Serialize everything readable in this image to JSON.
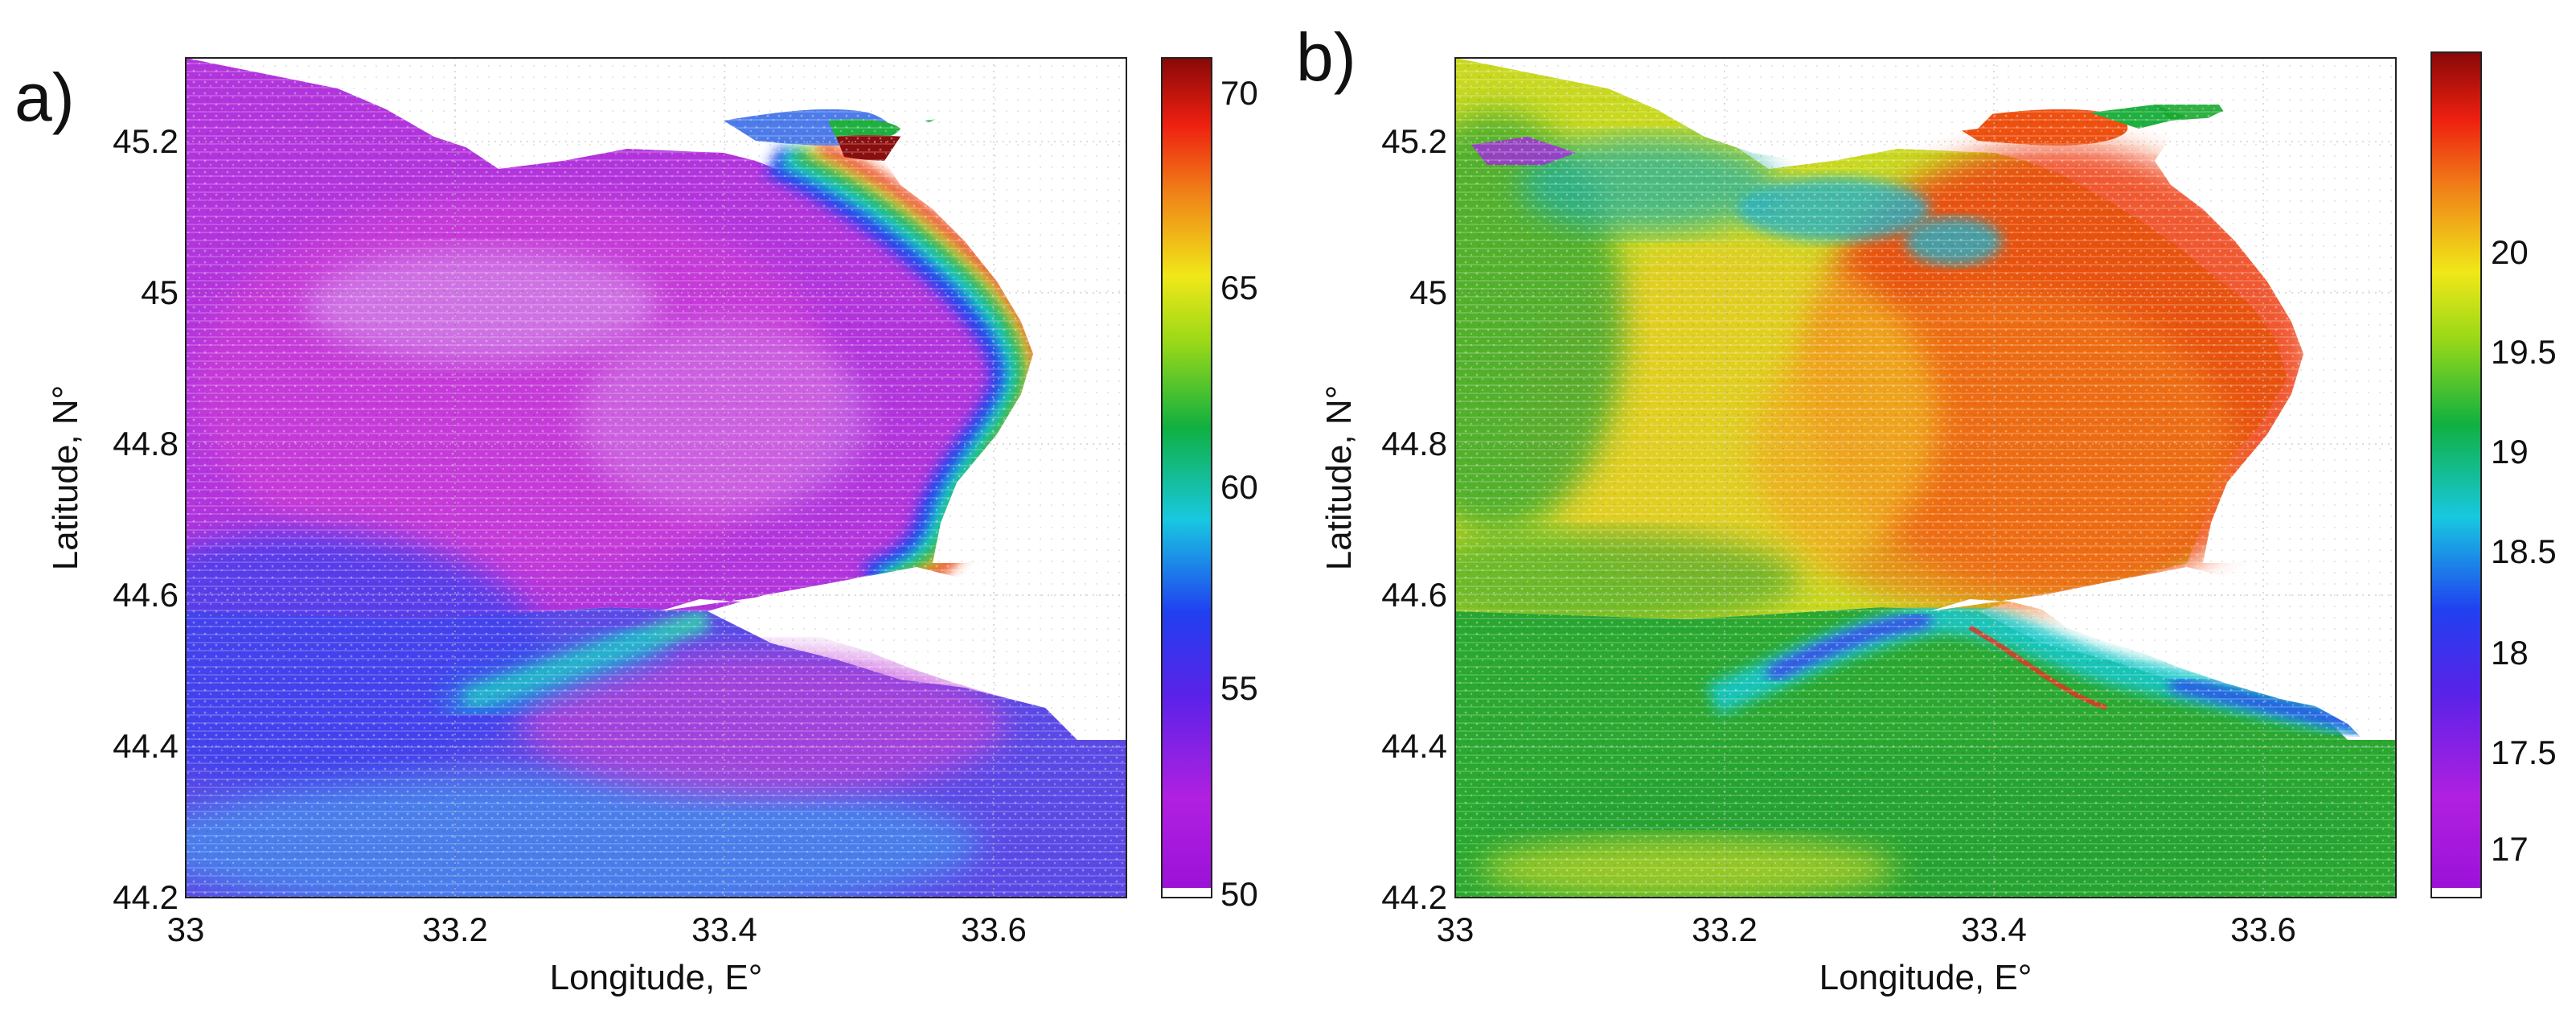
{
  "panels": [
    {
      "label": "a)",
      "xlabel": "Longitude, E°",
      "ylabel": "Latitude, N°",
      "xticks": [
        "33",
        "33.2",
        "33.4",
        "33.6"
      ],
      "yticks": [
        "44.2",
        "44.4",
        "44.6",
        "44.8",
        "45",
        "45.2"
      ],
      "colorbar": {
        "ticks": [
          "50",
          "55",
          "60",
          "65",
          "70"
        ],
        "range": [
          50,
          71
        ],
        "palette": "rainbow (purple-low to dark-red-high)"
      }
    },
    {
      "label": "b)",
      "xlabel": "Longitude, E°",
      "ylabel": "Latitude, N°",
      "xticks": [
        "33",
        "33.2",
        "33.4",
        "33.6"
      ],
      "yticks": [
        "44.2",
        "44.4",
        "44.6",
        "44.8",
        "45",
        "45.2"
      ],
      "colorbar": {
        "ticks": [
          "17",
          "17.5",
          "18",
          "18.5",
          "19",
          "19.5",
          "20"
        ],
        "range": [
          16.65,
          20.5
        ],
        "palette": "rainbow (purple-low to dark-red-high)"
      }
    }
  ],
  "chart_data": {
    "type": "heatmap",
    "x_range": [
      33.0,
      33.7
    ],
    "y_range": [
      44.2,
      45.3
    ],
    "grid": true,
    "colors": {
      "low": "#8a1fd6",
      "blue": "#2a3ef0",
      "cyan": "#12d2d2",
      "green": "#1cb01c",
      "yellow": "#f0e020",
      "red": "#ee2a10",
      "high": "#8a0e0e",
      "land": "#ffffff"
    }
  }
}
